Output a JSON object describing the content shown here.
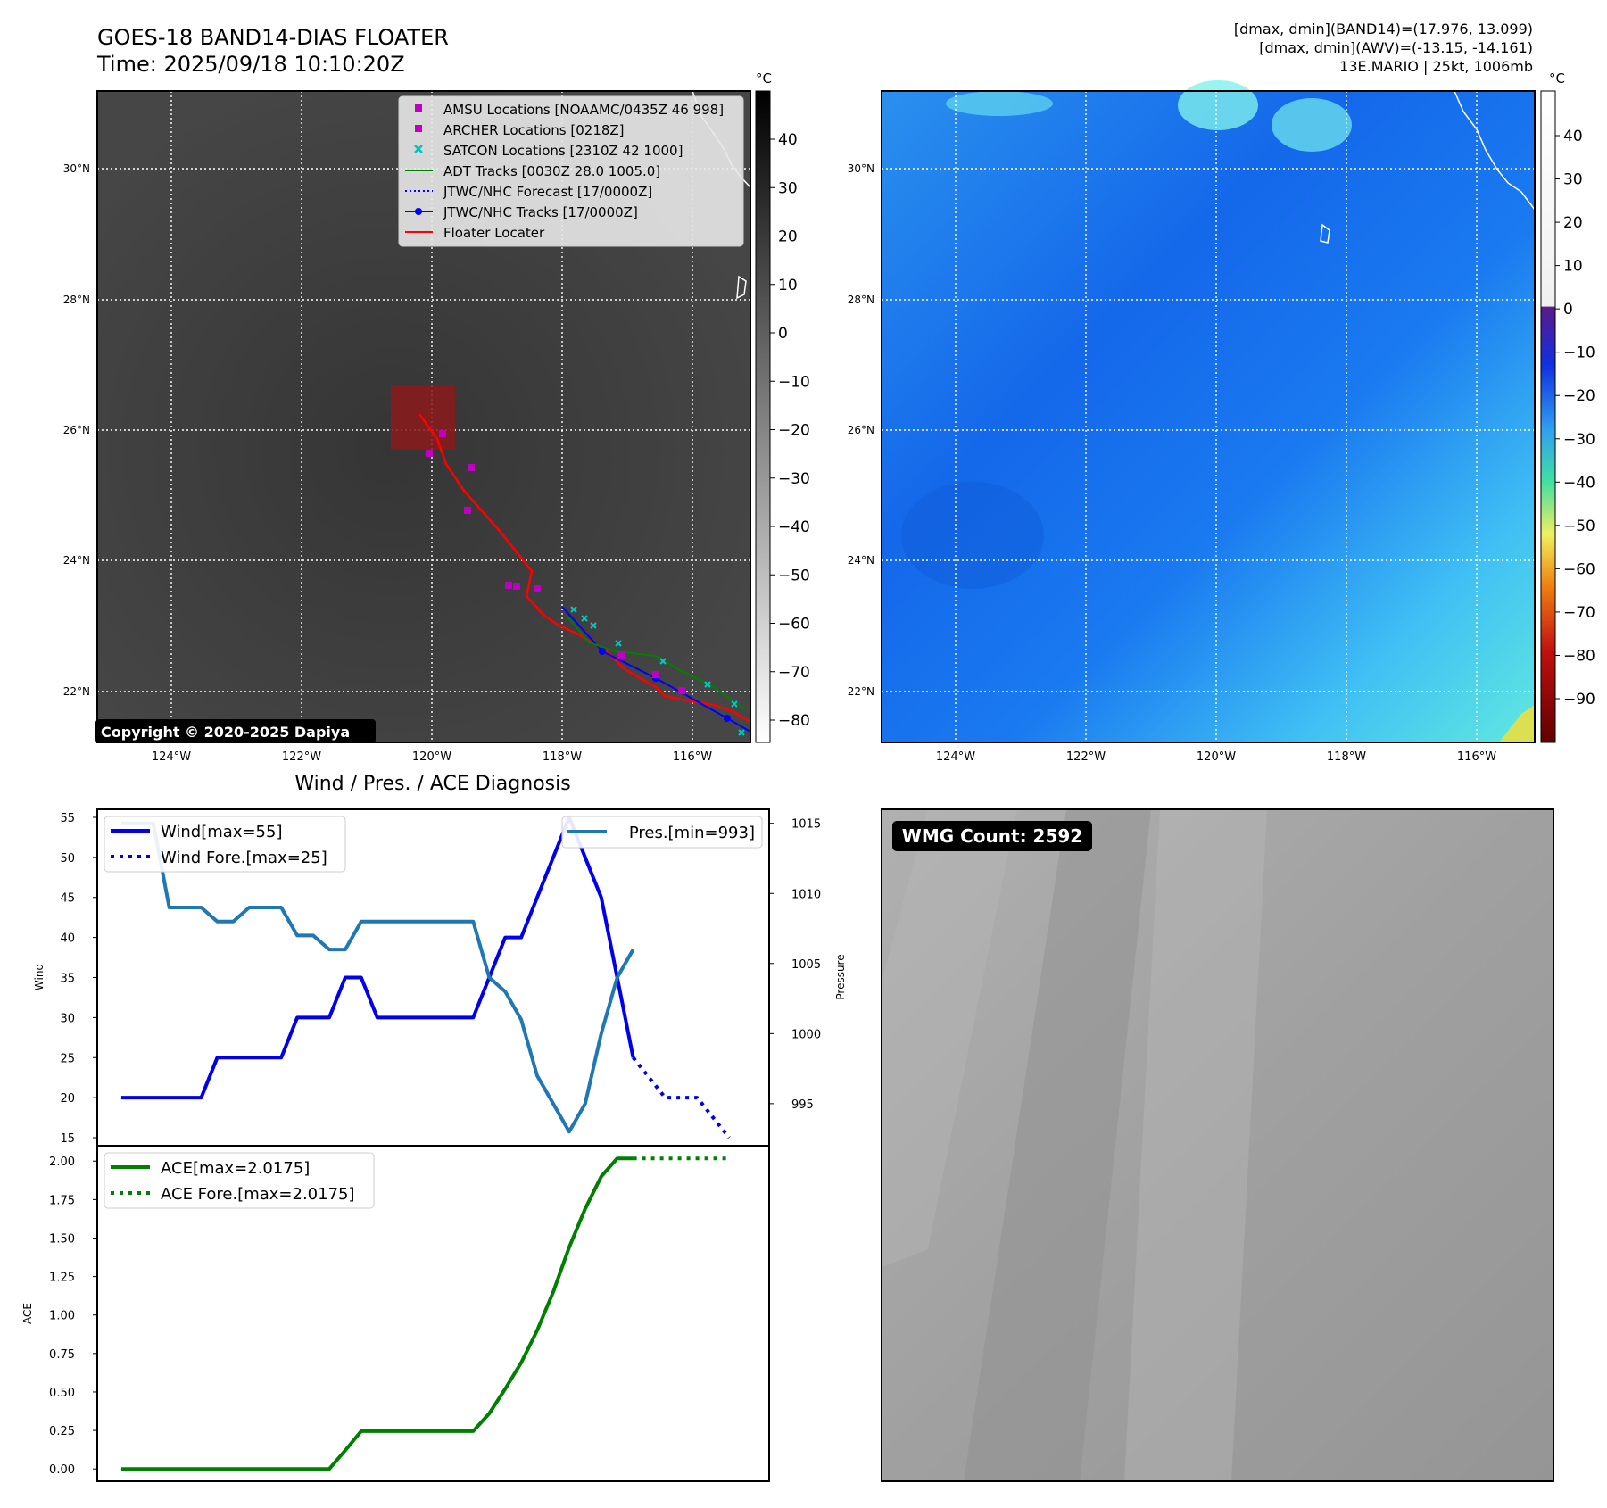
{
  "header": {
    "title_line1": "GOES-18 BAND14-DIAS FLOATER",
    "title_line2": "Time: 2025/09/18 10:10:20Z",
    "info_line1": "[dmax, dmin](BAND14)=(17.976, 13.099)",
    "info_line2": "[dmax, dmin](AWV)=(-13.15, -14.161)",
    "info_line3": "13E.MARIO | 25kt, 1006mb"
  },
  "copyright": "Copyright © 2020-2025 Dapiya",
  "map": {
    "lon_ticks": [
      "124°W",
      "122°W",
      "120°W",
      "118°W",
      "116°W"
    ],
    "lat_ticks": [
      "30°N",
      "28°N",
      "26°N",
      "24°N",
      "22°N"
    ],
    "legend": [
      {
        "label": "AMSU Locations [NOAAMC/0435Z 46 998]",
        "marker": "square",
        "color": "#c000c0"
      },
      {
        "label": "ARCHER Locations [0218Z]",
        "marker": "square",
        "color": "#c000c0"
      },
      {
        "label": "SATCON Locations [2310Z 42 1000]",
        "marker": "x",
        "color": "#00c0c0"
      },
      {
        "label": "ADT Tracks [0030Z 28.0 1005.0]",
        "marker": "line",
        "color": "#008000"
      },
      {
        "label": "JTWC/NHC Forecast [17/0000Z]",
        "marker": "dotted",
        "color": "#0000ff"
      },
      {
        "label": "JTWC/NHC Tracks [17/0000Z]",
        "marker": "line-dot",
        "color": "#0000ff"
      },
      {
        "label": "Floater Locater",
        "marker": "line",
        "color": "#ff0000"
      }
    ]
  },
  "colorbar_ir": {
    "unit": "°C",
    "ticks": [
      40,
      30,
      20,
      10,
      0,
      -10,
      -20,
      -30,
      -40,
      -50,
      -60,
      -70,
      -80
    ]
  },
  "colorbar_wv": {
    "unit": "°C",
    "ticks": [
      40,
      30,
      20,
      10,
      0,
      -10,
      -20,
      -30,
      -40,
      -50,
      -60,
      -70,
      -80,
      -90
    ]
  },
  "wmg": {
    "label": "WMG Count: 2592"
  },
  "chart_data": [
    {
      "type": "line",
      "title": "Wind / Pres. / ACE Diagnosis",
      "ylabel": "Wind",
      "y2label": "Pressure",
      "ylim": [
        14,
        56
      ],
      "y2lim": [
        992,
        1016
      ],
      "yticks": [
        15,
        20,
        25,
        30,
        35,
        40,
        45,
        50,
        55
      ],
      "y2ticks": [
        995,
        1000,
        1005,
        1010,
        1015
      ],
      "x": [
        0,
        1,
        2,
        3,
        4,
        5,
        6,
        7,
        8,
        9,
        10,
        11,
        12,
        13,
        14,
        15,
        16,
        17,
        18,
        19,
        20,
        21,
        22,
        23,
        24,
        25,
        26,
        27,
        28,
        29,
        30,
        31,
        32,
        33,
        34,
        35,
        36,
        37,
        38
      ],
      "series": [
        {
          "name": "Wind[max=55]",
          "axis": "left",
          "style": "solid",
          "color": "#0000ee",
          "x": [
            0,
            1,
            2,
            3,
            4,
            5,
            6,
            7,
            8,
            9,
            10,
            11,
            12,
            13,
            14,
            15,
            16,
            17,
            18,
            19,
            20,
            21,
            22,
            23,
            24,
            25,
            26,
            27,
            28,
            29,
            30,
            31,
            32
          ],
          "values": [
            20,
            20,
            20,
            20,
            20,
            20,
            25,
            25,
            25,
            25,
            25,
            30,
            30,
            30,
            35,
            35,
            30,
            30,
            30,
            30,
            30,
            30,
            30,
            35,
            40,
            40,
            45,
            50,
            55,
            50,
            45,
            35,
            25
          ]
        },
        {
          "name": "Wind Fore.[max=25]",
          "axis": "left",
          "style": "dotted",
          "color": "#0000ee",
          "x": [
            32,
            34,
            36,
            38
          ],
          "values": [
            25,
            20,
            20,
            15
          ]
        },
        {
          "name": "Pres.[min=993]",
          "axis": "right",
          "style": "solid",
          "color": "#1f77b4",
          "x": [
            0,
            1,
            2,
            3,
            4,
            5,
            6,
            7,
            8,
            9,
            10,
            11,
            12,
            13,
            14,
            15,
            16,
            17,
            18,
            19,
            20,
            21,
            22,
            23,
            24,
            25,
            26,
            27,
            28,
            29,
            30,
            31,
            32
          ],
          "values": [
            1015,
            1015,
            1015,
            1009,
            1009,
            1009,
            1008,
            1008,
            1009,
            1009,
            1009,
            1007,
            1007,
            1006,
            1006,
            1008,
            1008,
            1008,
            1008,
            1008,
            1008,
            1008,
            1008,
            1004,
            1003,
            1001,
            997,
            995,
            993,
            995,
            1000,
            1004,
            1006
          ]
        }
      ]
    },
    {
      "type": "line",
      "ylabel": "ACE",
      "ylim": [
        -0.08,
        2.1
      ],
      "yticks": [
        0.0,
        0.25,
        0.5,
        0.75,
        1.0,
        1.25,
        1.5,
        1.75,
        2.0
      ],
      "series": [
        {
          "name": "ACE[max=2.0175]",
          "style": "solid",
          "color": "#008000",
          "x": [
            0,
            1,
            2,
            3,
            4,
            5,
            6,
            7,
            8,
            9,
            10,
            11,
            12,
            13,
            14,
            15,
            16,
            17,
            18,
            19,
            20,
            21,
            22,
            23,
            24,
            25,
            26,
            27,
            28,
            29,
            30,
            31,
            32
          ],
          "values": [
            0,
            0,
            0,
            0,
            0,
            0,
            0,
            0,
            0,
            0,
            0,
            0,
            0,
            0,
            0.12,
            0.245,
            0.245,
            0.245,
            0.245,
            0.245,
            0.245,
            0.245,
            0.245,
            0.36,
            0.52,
            0.69,
            0.9,
            1.15,
            1.44,
            1.69,
            1.9,
            2.0175,
            2.0175
          ]
        },
        {
          "name": "ACE Fore.[max=2.0175]",
          "style": "dotted",
          "color": "#008000",
          "x": [
            32,
            34,
            36,
            38
          ],
          "values": [
            2.0175,
            2.0175,
            2.0175,
            2.0175
          ]
        }
      ]
    }
  ]
}
